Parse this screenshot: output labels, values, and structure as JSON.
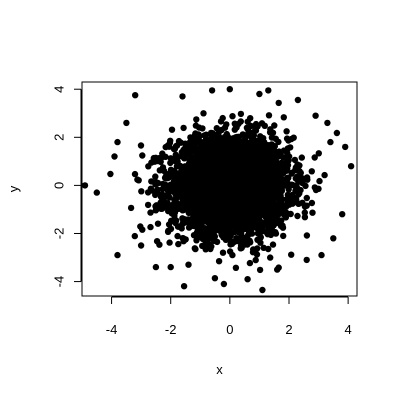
{
  "chart_data": {
    "type": "scatter",
    "title": "",
    "xlabel": "x",
    "ylabel": "y",
    "xlim": [
      -5.0,
      4.3
    ],
    "ylim": [
      -4.6,
      4.3
    ],
    "x_ticks": [
      -4,
      -2,
      0,
      2,
      4
    ],
    "y_ticks": [
      -4,
      -2,
      0,
      2,
      4
    ],
    "x_tick_labels": [
      "-4",
      "-2",
      "0",
      "2",
      "4"
    ],
    "y_tick_labels": [
      "-4",
      "-2",
      "0",
      "2",
      "4"
    ],
    "grid": false,
    "legend": "none",
    "point_color": "#000000",
    "point_style": "filled-circle",
    "distribution": "bivariate standard normal, mean (0, 0), sd 1, very dense cloud",
    "series": [
      {
        "points": [
          [
            -4.9,
            0.0
          ],
          [
            -4.5,
            -0.3
          ],
          [
            -3.8,
            1.8
          ],
          [
            -3.9,
            1.2
          ],
          [
            -3.8,
            -2.9
          ],
          [
            -3.2,
            3.75
          ],
          [
            -2.5,
            -3.4
          ],
          [
            -2.0,
            -3.4
          ],
          [
            -1.6,
            3.7
          ],
          [
            -1.4,
            -3.3
          ],
          [
            -0.6,
            3.95
          ],
          [
            -0.2,
            -4.1
          ],
          [
            0.0,
            4.0
          ],
          [
            0.6,
            -3.9
          ],
          [
            1.0,
            3.8
          ],
          [
            1.1,
            -4.35
          ],
          [
            1.3,
            3.95
          ],
          [
            1.6,
            -3.5
          ],
          [
            2.3,
            3.55
          ],
          [
            2.6,
            -3.1
          ],
          [
            3.1,
            -2.9
          ],
          [
            3.3,
            2.6
          ],
          [
            3.4,
            1.8
          ],
          [
            3.9,
            1.6
          ],
          [
            3.8,
            -1.2
          ],
          [
            4.1,
            0.8
          ],
          [
            3.5,
            -2.2
          ],
          [
            -3.0,
            -2.5
          ],
          [
            -3.5,
            2.6
          ],
          [
            2.9,
            2.9
          ]
        ]
      }
    ]
  }
}
